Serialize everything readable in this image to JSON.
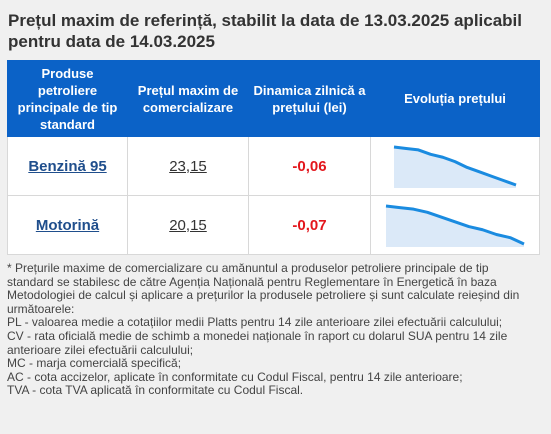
{
  "title": "Prețul maxim de referință, stabilit la data de 13.03.2025 aplicabil pentru data de 14.03.2025",
  "table": {
    "headers": [
      "Produse petroliere principale de tip standard",
      "Prețul maxim de comercializare",
      "Dinamica zilnică a prețului (lei)",
      "Evoluția prețului"
    ],
    "rows": [
      {
        "product": "Benzină 95",
        "price": "23,15",
        "dynamic": "-0,06",
        "trend": [
          10,
          9.9,
          9.8,
          9.5,
          9.3,
          9.0,
          8.6,
          8.3,
          8.0,
          7.7,
          7.4
        ]
      },
      {
        "product": "Motorină",
        "price": "20,15",
        "dynamic": "-0,07",
        "trend": [
          10,
          9.9,
          9.8,
          9.6,
          9.3,
          9.0,
          8.7,
          8.5,
          8.2,
          8.0,
          7.6
        ]
      }
    ]
  },
  "notes": [
    "* Prețurile maxime de comercializare cu amănuntul a produselor petroliere principale de tip standard se stabilesc de către Agenția Națională pentru Reglementare în Energetică în baza Metodologiei de calcul și aplicare a prețurilor la produsele petroliere și sunt calculate reieșind din următoarele:",
    "PL - valoarea medie a cotațiilor medii Platts pentru 14 zile anterioare zilei efectuării calculului;",
    "CV - rata oficială medie de schimb a monedei naționale în raport cu dolarul SUA pentru 14 zile anterioare zilei efectuării calculului;",
    "MC - marja comercială specifică;",
    "AC - cota accizelor, aplicate în conformitate cu Codul Fiscal, pentru 14 zile anterioare;",
    "TVA - cota TVA aplicată în conformitate cu Codul Fiscal."
  ],
  "colors": {
    "header_bg": "#0b62c7",
    "link": "#1f4e8c",
    "negative": "#e3171d",
    "spark_line": "#1a8be0",
    "spark_fill": "#dbe9f8"
  }
}
